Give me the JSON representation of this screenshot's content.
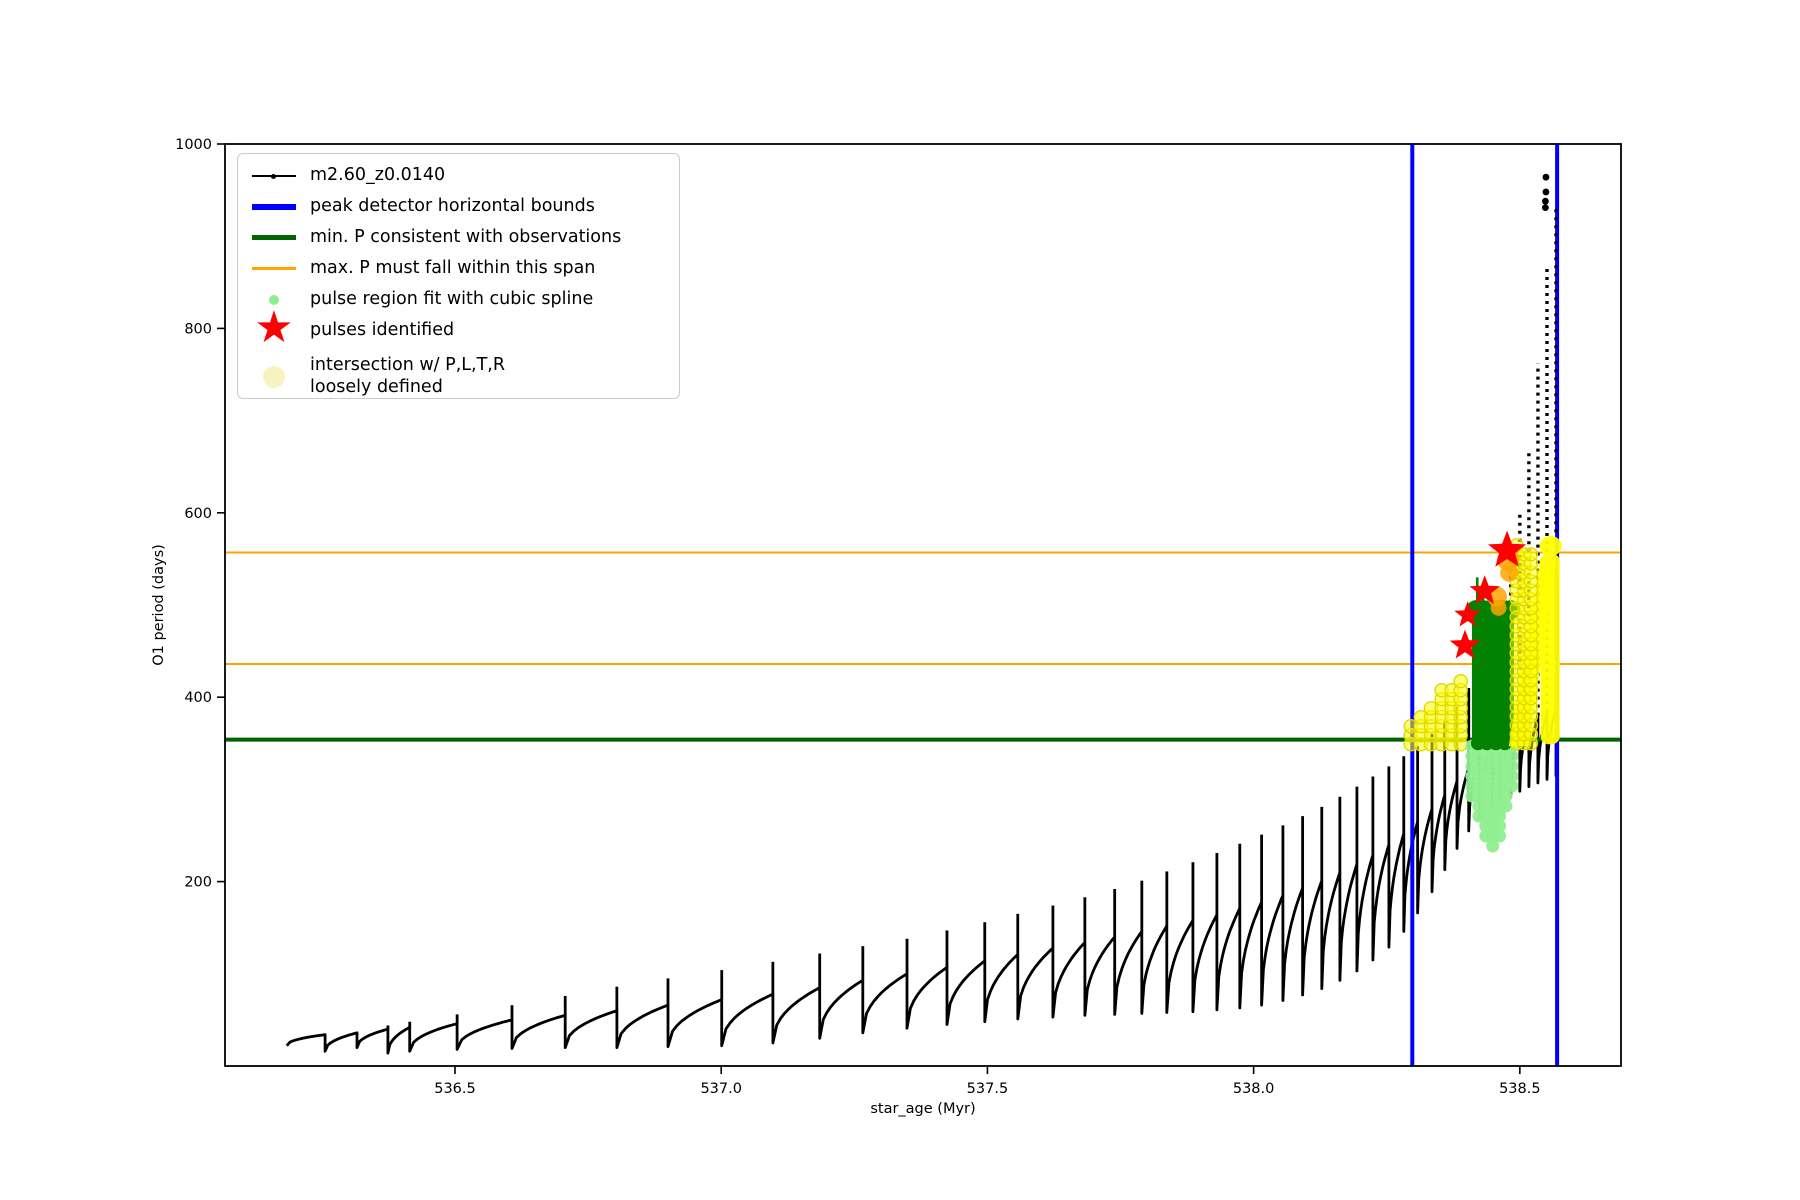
{
  "legend": {
    "items": [
      {
        "label": "m2.60_z0.0140",
        "marker": "black-line-with-dot",
        "color": "#000000"
      },
      {
        "label": "peak detector horizontal bounds",
        "marker": "thick-line",
        "color": "#0000ff"
      },
      {
        "label": "min. P consistent with observations",
        "marker": "thick-line",
        "color": "#006400"
      },
      {
        "label": "max. P must fall within this span",
        "marker": "line",
        "color": "#ffa500"
      },
      {
        "label": "pulse region fit with cubic spline",
        "marker": "dot",
        "color": "#90ee90"
      },
      {
        "label": "pulses identified",
        "marker": "star",
        "color": "#ff0000"
      },
      {
        "label": "intersection w/ P,L,T,R\nloosely defined",
        "marker": "big-dot",
        "color": "#f6f3c1"
      }
    ]
  },
  "chart_data": {
    "type": "line",
    "title": "",
    "xlabel": "star_age (Myr)",
    "ylabel": "O1 period (days)",
    "xlim": [
      536.068,
      538.69
    ],
    "ylim": [
      0,
      1000
    ],
    "xticks": [
      536.5,
      537.0,
      537.5,
      538.0,
      538.5
    ],
    "xtick_labels": [
      "536.5",
      "537.0",
      "537.5",
      "538.0",
      "538.5"
    ],
    "yticks": [
      200,
      400,
      600,
      800,
      1000
    ],
    "ytick_labels": [
      "200",
      "400",
      "600",
      "800",
      "1000"
    ],
    "grid": false,
    "legend_position": "upper left",
    "series_name": "m2.60_z0.0140",
    "series_color": "#000000",
    "pulse_cycles": {
      "columns": [
        "cycle_end_age_Myr",
        "min_period_days",
        "cusp_period_days",
        "spike_peak_period_days"
      ],
      "rows": [
        [
          536.184,
          22,
          34,
          null
        ],
        [
          536.256,
          16,
          36,
          null
        ],
        [
          536.316,
          20,
          40,
          44
        ],
        [
          536.374,
          14,
          42,
          48
        ],
        [
          536.415,
          16,
          46,
          56
        ],
        [
          536.504,
          18,
          50,
          66
        ],
        [
          536.607,
          19,
          55,
          76
        ],
        [
          536.707,
          20,
          60,
          86
        ],
        [
          536.804,
          20,
          66,
          95
        ],
        [
          536.9,
          21,
          72,
          104
        ],
        [
          537.001,
          22,
          78,
          113
        ],
        [
          537.097,
          25,
          85,
          122
        ],
        [
          537.185,
          30,
          93,
          130
        ],
        [
          537.266,
          36,
          100,
          138
        ],
        [
          537.349,
          41,
          107,
          147
        ],
        [
          537.424,
          45,
          114,
          156
        ],
        [
          537.495,
          48,
          121,
          165
        ],
        [
          537.557,
          51,
          128,
          174
        ],
        [
          537.623,
          53,
          134,
          183
        ],
        [
          537.683,
          55,
          140,
          192
        ],
        [
          537.739,
          56,
          146,
          201
        ],
        [
          537.79,
          57,
          152,
          211
        ],
        [
          537.837,
          58,
          158,
          221
        ],
        [
          537.886,
          59,
          164,
          231
        ],
        [
          537.931,
          61,
          171,
          241
        ],
        [
          537.974,
          63,
          178,
          251
        ],
        [
          538.015,
          66,
          185,
          261
        ],
        [
          538.055,
          71,
          193,
          271
        ],
        [
          538.092,
          77,
          201,
          281
        ],
        [
          538.128,
          84,
          210,
          292
        ],
        [
          538.162,
          93,
          219,
          303
        ],
        [
          538.194,
          103,
          229,
          314
        ],
        [
          538.224,
          115,
          240,
          325
        ],
        [
          538.254,
          129,
          252,
          336
        ],
        [
          538.282,
          146,
          265,
          347
        ],
        [
          538.308,
          166,
          279,
          360
        ],
        [
          538.335,
          189,
          294,
          374
        ],
        [
          538.359,
          213,
          309,
          390
        ],
        [
          538.382,
          236,
          323,
          410
        ],
        [
          538.404,
          255,
          336,
          436
        ],
        [
          538.425,
          269,
          347,
          468
        ],
        [
          538.446,
          279,
          356,
          505
        ],
        [
          538.464,
          287,
          363,
          548
        ],
        [
          538.483,
          293,
          369,
          600
        ],
        [
          538.5,
          298,
          375,
          668
        ],
        [
          538.517,
          303,
          380,
          762
        ],
        [
          538.534,
          307,
          384,
          866
        ],
        [
          538.551,
          311,
          388,
          930
        ],
        [
          538.568,
          314,
          390,
          null
        ]
      ]
    },
    "isolated_peak_points": [
      [
        538.549,
        964
      ],
      [
        538.549,
        948
      ],
      [
        538.548,
        938
      ],
      [
        538.548,
        931
      ]
    ],
    "reference_lines": {
      "vertical_blue": {
        "label": "peak detector horizontal bounds",
        "color": "#0000ff",
        "x_values": [
          538.298,
          538.57
        ],
        "linewidth": 4
      },
      "green_min": {
        "label": "min. P consistent with observations",
        "color": "#006400",
        "y_value": 354,
        "linewidth": 4
      },
      "orange_span": {
        "label": "max. P must fall within this span",
        "color": "#ffa500",
        "y_values": [
          436,
          557
        ],
        "linewidth": 2
      }
    },
    "green_fit_block": {
      "color": "#028102",
      "t0": 538.41,
      "t1": 538.489,
      "v_top": 495,
      "v_bottom": 350,
      "spikes": [
        [
          538.42,
          530
        ],
        [
          538.431,
          519
        ]
      ]
    },
    "pulse_region_scatter": {
      "color": "#90ee90",
      "columns_t": [
        538.41,
        538.423,
        538.436,
        538.449,
        538.462,
        538.474,
        538.485
      ],
      "v_top": 347,
      "v_bottoms": [
        290,
        266,
        243,
        236,
        249,
        274,
        296
      ]
    },
    "intersection_scatter": {
      "color": "#ffff00",
      "left_columns": {
        "t": [
          538.295,
          538.314,
          538.333,
          538.353,
          538.372,
          538.389
        ],
        "v_tops": [
          369,
          379,
          395,
          408,
          417,
          422
        ],
        "v_bottom": 349
      },
      "mid_columns": {
        "t": [
          538.494,
          538.508,
          538.521
        ],
        "v_tops": [
          565,
          560,
          556
        ],
        "v_bottom": 350
      },
      "band_polygon": [
        [
          538.479,
          347
        ],
        [
          538.539,
          552
        ],
        [
          538.568,
          552
        ],
        [
          538.517,
          347
        ]
      ],
      "block": {
        "t0": 538.539,
        "t1": 538.575,
        "v_top": 556,
        "v_bottom": 349
      },
      "blob": {
        "t": 538.558,
        "v": 564
      }
    },
    "identified_pulses": {
      "color": "#ff0000",
      "points": [
        [
          538.476,
          559
        ],
        [
          538.434,
          515
        ],
        [
          538.402,
          489
        ],
        [
          538.397,
          456
        ]
      ],
      "sizes": [
        20,
        16,
        14,
        16
      ]
    },
    "orange_markers": {
      "color": "#ffa500",
      "points": [
        [
          538.478,
          549
        ],
        [
          538.48,
          535
        ],
        [
          538.457,
          509
        ],
        [
          538.46,
          497
        ]
      ],
      "radii": [
        11,
        9,
        10,
        8
      ]
    }
  }
}
